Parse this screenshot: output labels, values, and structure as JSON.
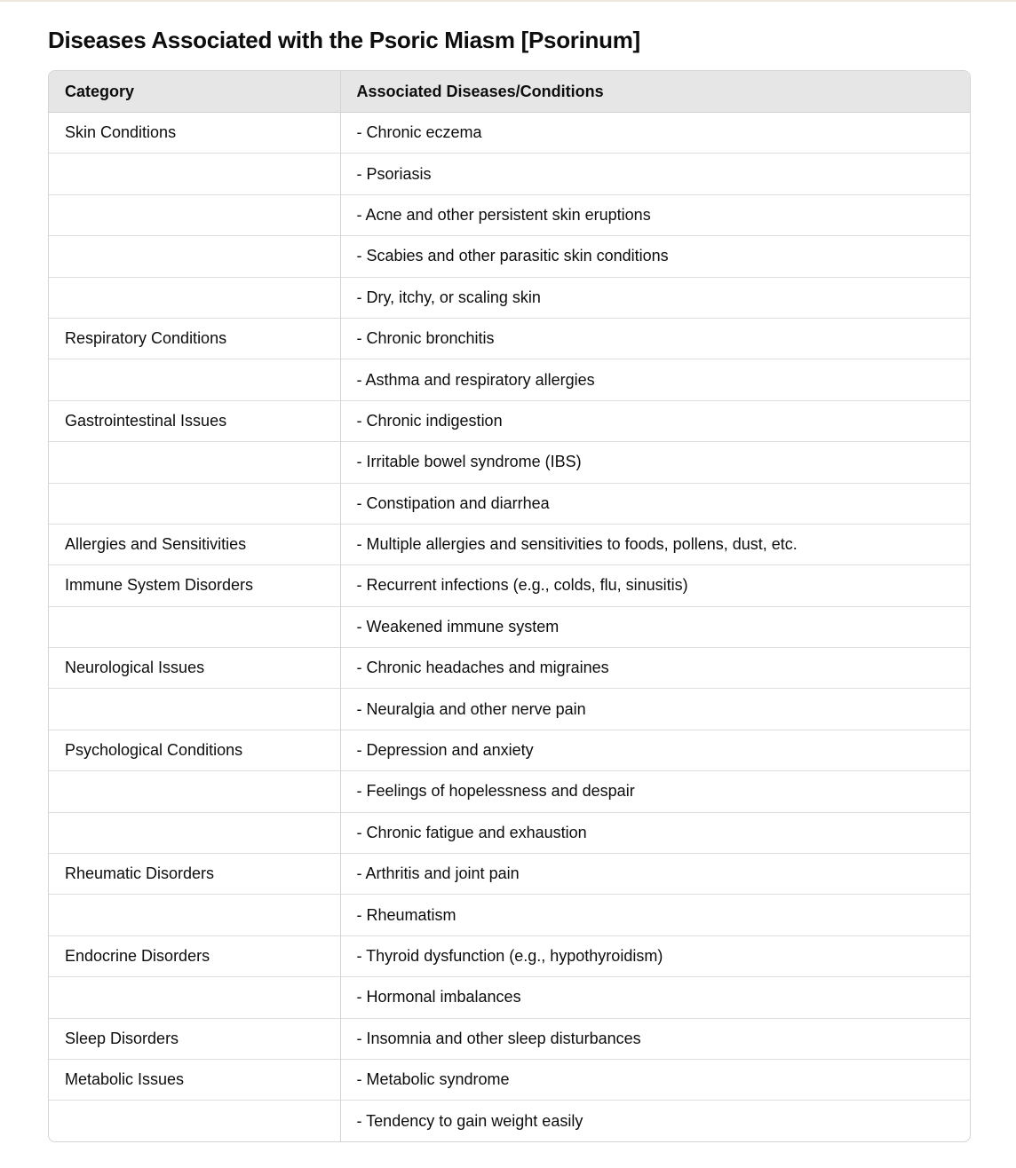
{
  "title": "Diseases Associated with the Psoric Miasm [Psorinum]",
  "table": {
    "headers": [
      "Category",
      "Associated Diseases/Conditions"
    ],
    "rows": [
      [
        "Skin Conditions",
        "- Chronic eczema"
      ],
      [
        "",
        "- Psoriasis"
      ],
      [
        "",
        "- Acne and other persistent skin eruptions"
      ],
      [
        "",
        "- Scabies and other parasitic skin conditions"
      ],
      [
        "",
        "- Dry, itchy, or scaling skin"
      ],
      [
        "Respiratory Conditions",
        "- Chronic bronchitis"
      ],
      [
        "",
        "- Asthma and respiratory allergies"
      ],
      [
        "Gastrointestinal Issues",
        "- Chronic indigestion"
      ],
      [
        "",
        "- Irritable bowel syndrome (IBS)"
      ],
      [
        "",
        "- Constipation and diarrhea"
      ],
      [
        "Allergies and Sensitivities",
        "- Multiple allergies and sensitivities to foods, pollens, dust, etc."
      ],
      [
        "Immune System Disorders",
        "- Recurrent infections (e.g., colds, flu, sinusitis)"
      ],
      [
        "",
        "- Weakened immune system"
      ],
      [
        "Neurological Issues",
        "- Chronic headaches and migraines"
      ],
      [
        "",
        "- Neuralgia and other nerve pain"
      ],
      [
        "Psychological Conditions",
        "- Depression and anxiety"
      ],
      [
        "",
        "- Feelings of hopelessness and despair"
      ],
      [
        "",
        "- Chronic fatigue and exhaustion"
      ],
      [
        "Rheumatic Disorders",
        "- Arthritis and joint pain"
      ],
      [
        "",
        "- Rheumatism"
      ],
      [
        "Endocrine Disorders",
        "- Thyroid dysfunction (e.g., hypothyroidism)"
      ],
      [
        "",
        "- Hormonal imbalances"
      ],
      [
        "Sleep Disorders",
        "- Insomnia and other sleep disturbances"
      ],
      [
        "Metabolic Issues",
        "- Metabolic syndrome"
      ],
      [
        "",
        "- Tendency to gain weight easily"
      ]
    ]
  }
}
